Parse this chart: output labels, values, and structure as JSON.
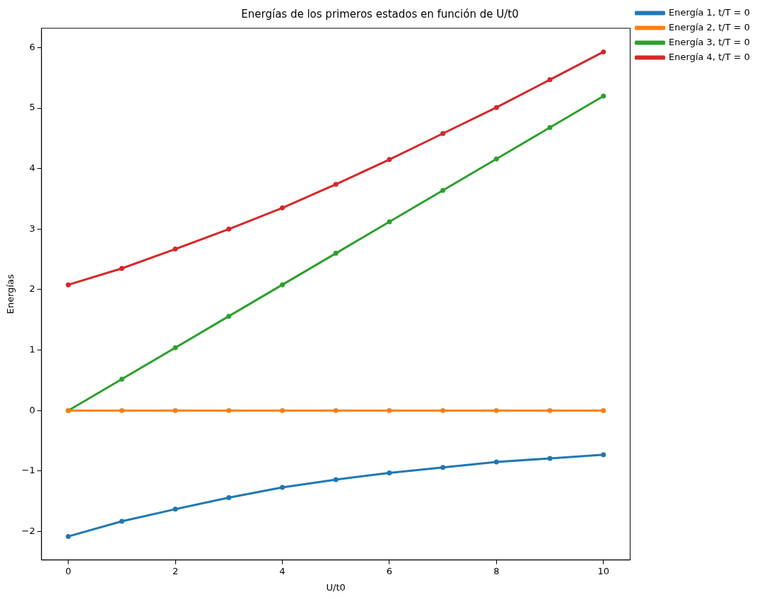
{
  "chart_data": {
    "type": "line",
    "title": "Energías de los primeros estados en función de U/t0",
    "xlabel": "U/t0",
    "ylabel": "Energías",
    "x": [
      0,
      1,
      2,
      3,
      4,
      5,
      6,
      7,
      8,
      9,
      10
    ],
    "series": [
      {
        "name": "Energía 1, t/T = 0",
        "color": "#1f77b4",
        "values": [
          -2.08,
          -1.83,
          -1.63,
          -1.44,
          -1.27,
          -1.14,
          -1.03,
          -0.94,
          -0.85,
          -0.79,
          -0.73
        ]
      },
      {
        "name": "Energía 2, t/T = 0",
        "color": "#ff7f0e",
        "values": [
          0,
          0,
          0,
          0,
          0,
          0,
          0,
          0,
          0,
          0,
          0
        ]
      },
      {
        "name": "Energía 3, t/T = 0",
        "color": "#2ca02c",
        "values": [
          0,
          0.52,
          1.04,
          1.56,
          2.08,
          2.6,
          3.12,
          3.64,
          4.16,
          4.68,
          5.2
        ]
      },
      {
        "name": "Energía 4, t/T = 0",
        "color": "#d62728",
        "values": [
          2.08,
          2.35,
          2.67,
          3.0,
          3.35,
          3.74,
          4.15,
          4.58,
          5.01,
          5.47,
          5.93
        ]
      }
    ],
    "xlim": [
      -0.5,
      10.5
    ],
    "xticks": [
      0,
      2,
      4,
      6,
      8,
      10
    ],
    "ylim": [
      -2.47,
      6.32
    ],
    "yticks": [
      -2,
      -1,
      0,
      1,
      2,
      3,
      4,
      5,
      6
    ],
    "grid": false,
    "legend": "top right",
    "marker": "circle",
    "line_style": "solid"
  }
}
